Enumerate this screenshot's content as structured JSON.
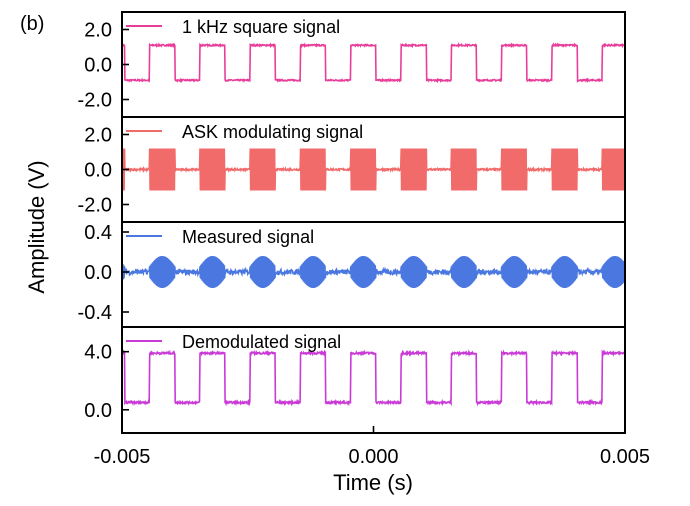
{
  "panel_label": "(b)",
  "chart_data": {
    "type": "line",
    "xlabel": "Time (s)",
    "ylabel": "Amplitude (V)",
    "xlim": [
      -0.005,
      0.005
    ],
    "x_ticks": [
      "-0.005",
      "0.000",
      "0.005"
    ],
    "grid": false,
    "panels": [
      {
        "series": [
          {
            "name": "1 kHz square signal",
            "color": "#e83e9a",
            "waveform": "square",
            "high": 1.1,
            "low": -0.9,
            "frequency_hz": 1000
          }
        ],
        "ylim": [
          -3,
          3
        ],
        "y_ticks": [
          "2.0",
          "0.0",
          "-2.0"
        ]
      },
      {
        "series": [
          {
            "name": "ASK modulating signal",
            "color": "#f26b6b",
            "waveform": "ask_burst",
            "burst_amplitude": 1.2,
            "frequency_hz": 1000
          }
        ],
        "ylim": [
          -3,
          3
        ],
        "y_ticks": [
          "2.0",
          "0.0",
          "-2.0"
        ]
      },
      {
        "series": [
          {
            "name": "Measured signal",
            "color": "#4a78e0",
            "waveform": "ask_burst_distorted",
            "burst_amplitude": 0.16,
            "frequency_hz": 1000
          }
        ],
        "ylim": [
          -0.55,
          0.5
        ],
        "y_ticks": [
          "0.4",
          "0.0",
          "-0.4"
        ]
      },
      {
        "series": [
          {
            "name": "Demodulated signal",
            "color": "#c93ad6",
            "waveform": "square",
            "high": 3.9,
            "low": 0.5,
            "frequency_hz": 1000
          }
        ],
        "ylim": [
          -1.6,
          5.7
        ],
        "y_ticks": [
          "4.0",
          "0.0"
        ]
      }
    ]
  }
}
